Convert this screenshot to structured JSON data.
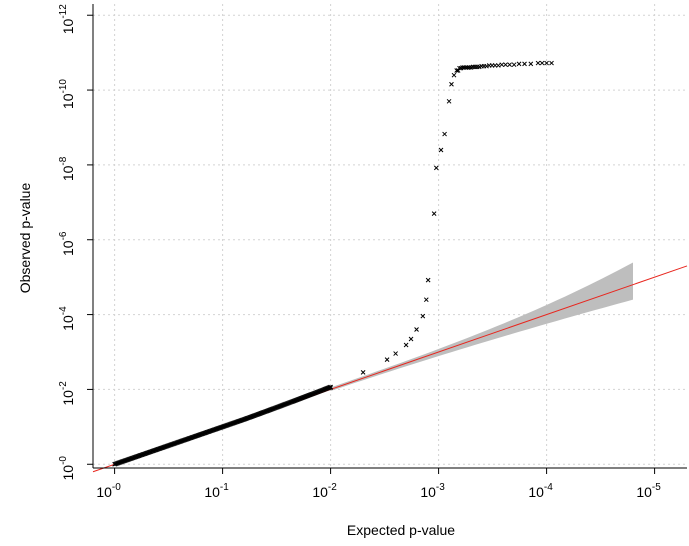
{
  "chart_data": {
    "type": "scatter",
    "title": "",
    "xlabel": "Expected p-value",
    "ylabel": "Observed p-value",
    "x_scale": "log10-reversed",
    "y_scale": "log10-reversed",
    "x_ticks": [
      {
        "value": 1,
        "base": "10",
        "exp": "-0"
      },
      {
        "value": 0.1,
        "base": "10",
        "exp": "-1"
      },
      {
        "value": 0.01,
        "base": "10",
        "exp": "-2"
      },
      {
        "value": 0.001,
        "base": "10",
        "exp": "-3"
      },
      {
        "value": 0.0001,
        "base": "10",
        "exp": "-4"
      },
      {
        "value": 1e-05,
        "base": "10",
        "exp": "-5"
      }
    ],
    "y_ticks": [
      {
        "value": 1,
        "base": "10",
        "exp": "-0"
      },
      {
        "value": 0.01,
        "base": "10",
        "exp": "-2"
      },
      {
        "value": 0.0001,
        "base": "10",
        "exp": "-4"
      },
      {
        "value": 1e-06,
        "base": "10",
        "exp": "-6"
      },
      {
        "value": 1e-08,
        "base": "10",
        "exp": "-8"
      },
      {
        "value": 1e-10,
        "base": "10",
        "exp": "-10"
      },
      {
        "value": 1e-12,
        "base": "10",
        "exp": "-12"
      }
    ],
    "grid": true,
    "reference_line": {
      "color": "#e8261e",
      "description": "observed = expected"
    },
    "confidence_band": {
      "color": "#bebebe"
    },
    "series_color": "#000000",
    "points": [
      {
        "x": 0.01,
        "y": 0.009
      },
      {
        "x": 0.005,
        "y": 0.0035
      },
      {
        "x": 0.003,
        "y": 0.0016
      },
      {
        "x": 0.0025,
        "y": 0.0011
      },
      {
        "x": 0.002,
        "y": 0.00065
      },
      {
        "x": 0.0018,
        "y": 0.00045
      },
      {
        "x": 0.0016,
        "y": 0.00025
      },
      {
        "x": 0.0014,
        "y": 0.00011
      },
      {
        "x": 0.0013,
        "y": 4e-05
      },
      {
        "x": 0.00125,
        "y": 1.2e-05
      },
      {
        "x": 0.0011,
        "y": 2e-07
      },
      {
        "x": 0.00105,
        "y": 1.2e-08
      },
      {
        "x": 0.00095,
        "y": 4e-09
      },
      {
        "x": 0.00088,
        "y": 1.5e-09
      },
      {
        "x": 0.0008,
        "y": 2e-10
      },
      {
        "x": 0.00076,
        "y": 7e-11
      },
      {
        "x": 0.00072,
        "y": 4e-11
      },
      {
        "x": 0.00068,
        "y": 3e-11
      },
      {
        "x": 0.00066,
        "y": 3e-11
      },
      {
        "x": 0.00064,
        "y": 2.6e-11
      },
      {
        "x": 0.00062,
        "y": 2.6e-11
      },
      {
        "x": 0.0006,
        "y": 2.5e-11
      },
      {
        "x": 0.00058,
        "y": 2.5e-11
      },
      {
        "x": 0.00056,
        "y": 2.5e-11
      },
      {
        "x": 0.00054,
        "y": 2.5e-11
      },
      {
        "x": 0.00052,
        "y": 2.5e-11
      },
      {
        "x": 0.0005,
        "y": 2.5e-11
      },
      {
        "x": 0.00048,
        "y": 2.4e-11
      },
      {
        "x": 0.00046,
        "y": 2.4e-11
      },
      {
        "x": 0.00044,
        "y": 2.4e-11
      },
      {
        "x": 0.00042,
        "y": 2.4e-11
      },
      {
        "x": 0.0004,
        "y": 2.3e-11
      },
      {
        "x": 0.00038,
        "y": 2.3e-11
      },
      {
        "x": 0.00036,
        "y": 2.3e-11
      },
      {
        "x": 0.00034,
        "y": 2.2e-11
      },
      {
        "x": 0.00032,
        "y": 2.2e-11
      },
      {
        "x": 0.0003,
        "y": 2.2e-11
      },
      {
        "x": 0.00028,
        "y": 2.2e-11
      },
      {
        "x": 0.00026,
        "y": 2.1e-11
      },
      {
        "x": 0.00024,
        "y": 2.1e-11
      },
      {
        "x": 0.00022,
        "y": 2.1e-11
      },
      {
        "x": 0.0002,
        "y": 2.1e-11
      },
      {
        "x": 0.00018,
        "y": 2e-11
      },
      {
        "x": 0.00016,
        "y": 2e-11
      },
      {
        "x": 0.00014,
        "y": 2e-11
      },
      {
        "x": 0.00012,
        "y": 1.9e-11
      },
      {
        "x": 0.00011,
        "y": 1.9e-11
      },
      {
        "x": 0.0001,
        "y": 1.9e-11
      },
      {
        "x": 9e-05,
        "y": 1.9e-11
      }
    ]
  }
}
